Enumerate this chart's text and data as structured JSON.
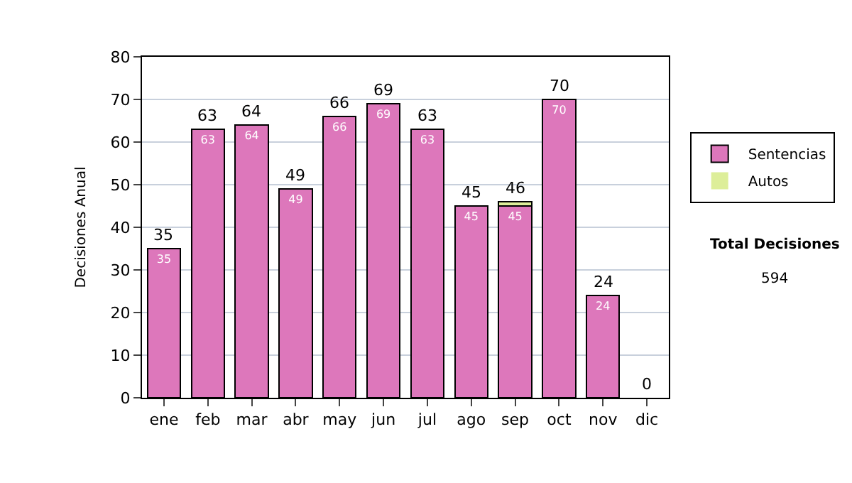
{
  "chart_data": {
    "type": "bar",
    "stacked": true,
    "ylabel": "Decisiones Anual",
    "categories": [
      "ene",
      "feb",
      "mar",
      "abr",
      "may",
      "jun",
      "jul",
      "ago",
      "sep",
      "oct",
      "nov",
      "dic"
    ],
    "series": [
      {
        "name": "Sentencias",
        "color": "#dd77bb",
        "values": [
          35,
          63,
          64,
          49,
          66,
          69,
          63,
          45,
          45,
          70,
          24,
          0
        ],
        "value_labels": [
          "35",
          "63",
          "64",
          "49",
          "66",
          "69",
          "63",
          "45",
          "45",
          "70",
          "24",
          null
        ]
      },
      {
        "name": "Autos",
        "color": "#ddee99",
        "values": [
          0,
          0,
          0,
          0,
          0,
          0,
          0,
          0,
          1,
          0,
          0,
          0
        ]
      }
    ],
    "totals": [
      "35",
      "63",
      "64",
      "49",
      "66",
      "69",
      "63",
      "45",
      "46",
      "70",
      "24",
      "0"
    ],
    "ylim": [
      0,
      80
    ],
    "yticks": [
      0,
      10,
      20,
      30,
      40,
      50,
      60,
      70,
      80
    ],
    "grid": "y",
    "legend": "right",
    "annotations": [
      "Total Decisiones",
      "594"
    ]
  }
}
